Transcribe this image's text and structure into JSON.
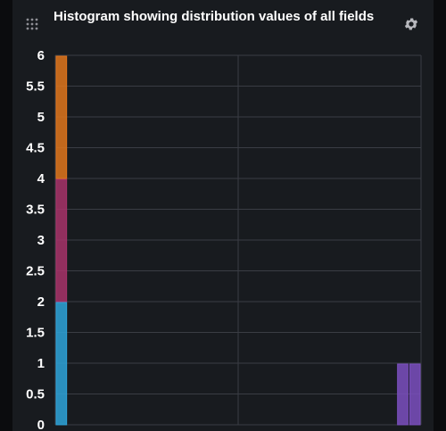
{
  "panel": {
    "title": "Histogram showing distribution values of all fields",
    "drag_icon": "grip-dots-icon",
    "settings_icon": "gear-icon"
  },
  "chart_data": {
    "type": "bar",
    "title": "Histogram showing distribution values of all fields",
    "xlabel": "",
    "ylabel": "",
    "ylim": [
      0,
      6
    ],
    "y_ticks": [
      "0",
      "0.5",
      "1",
      "1.5",
      "2",
      "2.5",
      "3",
      "3.5",
      "4",
      "4.5",
      "5",
      "5.5",
      "6"
    ],
    "grid": true,
    "stacked": true,
    "bars": [
      {
        "bin": 0,
        "segments": [
          {
            "value": 2,
            "color": "#2ea3d9"
          },
          {
            "value": 2,
            "color": "#a8336a"
          },
          {
            "value": 2,
            "color": "#e0751c"
          }
        ]
      },
      {
        "bin": 28,
        "segments": [
          {
            "value": 1,
            "color": "#7b4fbf"
          }
        ]
      },
      {
        "bin": 29,
        "segments": [
          {
            "value": 1,
            "color": "#7b4fbf"
          }
        ]
      }
    ],
    "bin_count": 30
  }
}
